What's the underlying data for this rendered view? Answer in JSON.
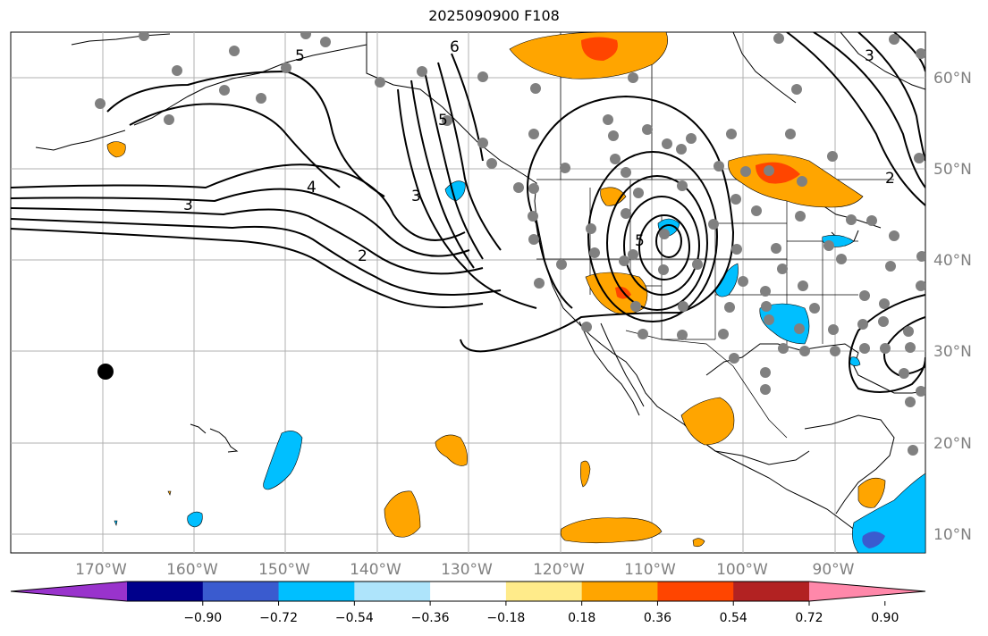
{
  "title": "2025090900 F108",
  "lat_labels": [
    "60°N",
    "50°N",
    "40°N",
    "30°N",
    "20°N",
    "10°N"
  ],
  "lon_labels": [
    "170°W",
    "160°W",
    "150°W",
    "140°W",
    "130°W",
    "120°W",
    "110°W",
    "100°W",
    "90°W"
  ],
  "contour_labels": [
    "3",
    "4",
    "3",
    "2",
    "5",
    "6",
    "5",
    "5",
    "2",
    "3"
  ],
  "colorbar": {
    "ticks": [
      "−0.90",
      "−0.72",
      "−0.54",
      "−0.36",
      "−0.18",
      "0.18",
      "0.36",
      "0.54",
      "0.72",
      "0.90"
    ],
    "colors": [
      "#9933cc",
      "#00008b",
      "#3a5bcf",
      "#00bfff",
      "#aee4fb",
      "#ffffff",
      "#ffeb8a",
      "#ffa500",
      "#ff4500",
      "#b22222",
      "#ff88aa"
    ]
  },
  "colors": {
    "positive_light": "#ffeb8a",
    "positive_mid": "#ffa500",
    "positive_high": "#ff4500",
    "negative_light": "#aee4fb",
    "negative_mid": "#00bfff",
    "negative_high": "#3a5bcf",
    "station": "#808080"
  }
}
